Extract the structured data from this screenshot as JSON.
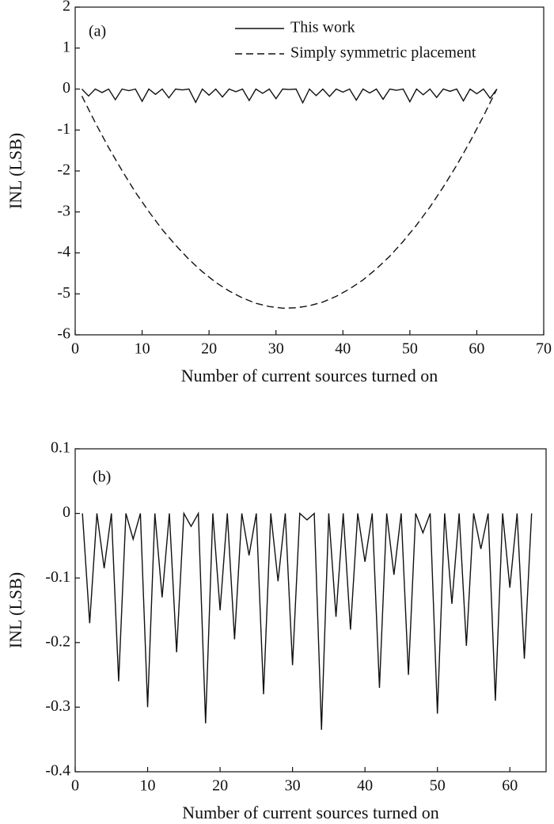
{
  "chart_data": [
    {
      "type": "line",
      "annotation": "(a)",
      "x_label": "Number of current sources turned on",
      "y_label": "INL (LSB)",
      "xlim": [
        0,
        70
      ],
      "xticks": [
        0,
        10,
        20,
        30,
        40,
        50,
        60,
        70
      ],
      "ylim": [
        -6,
        2
      ],
      "yticks": [
        -6,
        -5,
        -4,
        -3,
        -2,
        -1,
        0,
        1,
        2
      ],
      "legend": "upper right",
      "series": [
        {
          "name": "This work",
          "color": "#111111",
          "style": "solid",
          "x": [
            1,
            2,
            3,
            4,
            5,
            6,
            7,
            8,
            9,
            10,
            11,
            12,
            13,
            14,
            15,
            16,
            17,
            18,
            19,
            20,
            21,
            22,
            23,
            24,
            25,
            26,
            27,
            28,
            29,
            30,
            31,
            32,
            33,
            34,
            35,
            36,
            37,
            38,
            39,
            40,
            41,
            42,
            43,
            44,
            45,
            46,
            47,
            48,
            49,
            50,
            51,
            52,
            53,
            54,
            55,
            56,
            57,
            58,
            59,
            60,
            61,
            62,
            63
          ],
          "values": [
            0,
            -0.17,
            0,
            -0.085,
            0,
            -0.26,
            0,
            -0.04,
            0,
            -0.3,
            0,
            -0.13,
            0,
            -0.215,
            0,
            -0.02,
            0,
            -0.325,
            0,
            -0.15,
            0,
            -0.195,
            0,
            -0.065,
            0,
            -0.28,
            0,
            -0.105,
            0,
            -0.235,
            0,
            -0.01,
            0,
            -0.335,
            0,
            -0.16,
            0,
            -0.18,
            0,
            -0.075,
            0,
            -0.27,
            0,
            -0.095,
            0,
            -0.25,
            0,
            -0.03,
            0,
            -0.31,
            0,
            -0.14,
            0,
            -0.205,
            0,
            -0.055,
            0,
            -0.29,
            0,
            -0.115,
            0,
            -0.225,
            0
          ]
        },
        {
          "name": "Simply symmetric placement",
          "color": "#111111",
          "style": "dashed",
          "x": [
            1,
            3,
            5,
            7,
            9,
            11,
            13,
            15,
            17,
            19,
            21,
            23,
            25,
            27,
            29,
            31,
            33,
            35,
            37,
            39,
            41,
            43,
            45,
            47,
            49,
            51,
            53,
            55,
            57,
            59,
            61,
            63
          ],
          "values": [
            -0.17,
            -0.82,
            -1.43,
            -1.99,
            -2.52,
            -2.99,
            -3.43,
            -3.81,
            -4.16,
            -4.46,
            -4.72,
            -4.93,
            -5.1,
            -5.23,
            -5.31,
            -5.35,
            -5.34,
            -5.29,
            -5.2,
            -5.06,
            -4.88,
            -4.66,
            -4.39,
            -4.08,
            -3.72,
            -3.32,
            -2.88,
            -2.39,
            -1.86,
            -1.28,
            -0.66,
            0
          ]
        }
      ]
    },
    {
      "type": "line",
      "annotation": "(b)",
      "x_label": "Number of current sources turned on",
      "y_label": "INL (LSB)",
      "xlim": [
        0,
        65
      ],
      "xticks": [
        0,
        10,
        20,
        30,
        40,
        50,
        60
      ],
      "ylim": [
        -0.4,
        0.1
      ],
      "yticks": [
        -0.4,
        -0.3,
        -0.2,
        -0.1,
        0,
        0.1
      ],
      "series": [
        {
          "color": "#111111",
          "style": "solid",
          "x": [
            1,
            2,
            3,
            4,
            5,
            6,
            7,
            8,
            9,
            10,
            11,
            12,
            13,
            14,
            15,
            16,
            17,
            18,
            19,
            20,
            21,
            22,
            23,
            24,
            25,
            26,
            27,
            28,
            29,
            30,
            31,
            32,
            33,
            34,
            35,
            36,
            37,
            38,
            39,
            40,
            41,
            42,
            43,
            44,
            45,
            46,
            47,
            48,
            49,
            50,
            51,
            52,
            53,
            54,
            55,
            56,
            57,
            58,
            59,
            60,
            61,
            62,
            63
          ],
          "values": [
            0,
            -0.17,
            0,
            -0.085,
            0,
            -0.26,
            0,
            -0.04,
            0,
            -0.3,
            0,
            -0.13,
            0,
            -0.215,
            0,
            -0.02,
            0,
            -0.325,
            0,
            -0.15,
            0,
            -0.195,
            0,
            -0.065,
            0,
            -0.28,
            0,
            -0.105,
            0,
            -0.235,
            0,
            -0.01,
            0,
            -0.335,
            0,
            -0.16,
            0,
            -0.18,
            0,
            -0.075,
            0,
            -0.27,
            0,
            -0.095,
            0,
            -0.25,
            0,
            -0.03,
            0,
            -0.31,
            0,
            -0.14,
            0,
            -0.205,
            0,
            -0.055,
            0,
            -0.29,
            0,
            -0.115,
            0,
            -0.225,
            0
          ]
        }
      ]
    }
  ]
}
